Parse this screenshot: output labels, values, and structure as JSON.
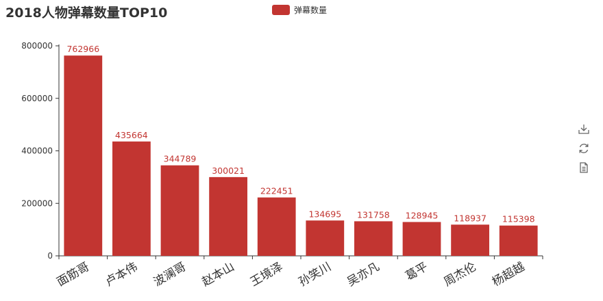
{
  "chart_data": {
    "type": "bar",
    "title": "2018人物弹幕数量TOP10",
    "categories": [
      "面筋哥",
      "卢本伟",
      "波澜哥",
      "赵本山",
      "王境泽",
      "孙笑川",
      "吴亦凡",
      "葛平",
      "周杰伦",
      "杨超越"
    ],
    "series": [
      {
        "name": "弹幕数量",
        "values": [
          762966,
          435664,
          344789,
          300021,
          222451,
          134695,
          131758,
          128945,
          118937,
          115398
        ]
      }
    ],
    "yticks": [
      "0",
      "200000",
      "400000",
      "600000",
      "800000"
    ],
    "ylim": [
      0,
      800000
    ],
    "legend_position": "top-center",
    "grid": false,
    "bar_color": "#c23531",
    "data_label_color": "#c23531"
  },
  "toolbox": {
    "icons": [
      "download-icon",
      "refresh-icon",
      "data-view-icon"
    ]
  }
}
